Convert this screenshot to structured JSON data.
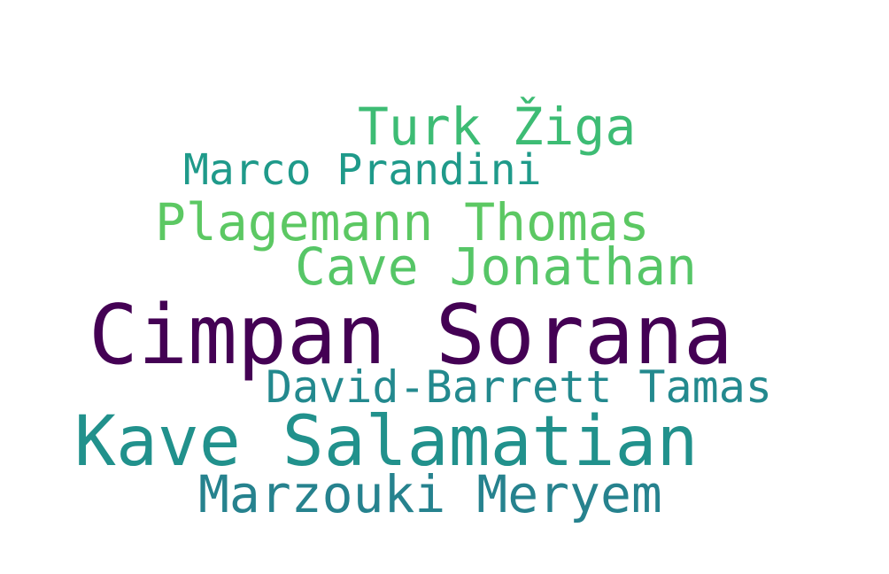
{
  "words": [
    {
      "text": "Turk Žiga",
      "color": "#3dbc74"
    },
    {
      "text": "Marco Prandini",
      "color": "#1f9a8a"
    },
    {
      "text": "Plagemann Thomas",
      "color": "#5cc863"
    },
    {
      "text": "Cave Jonathan",
      "color": "#56c667"
    },
    {
      "text": "Cimpan Sorana",
      "color": "#440154"
    },
    {
      "text": "David-Barrett Tamas",
      "color": "#23898e"
    },
    {
      "text": "Kave Salamatian",
      "color": "#21918c"
    },
    {
      "text": "Marzouki Meryem",
      "color": "#26828e"
    }
  ]
}
